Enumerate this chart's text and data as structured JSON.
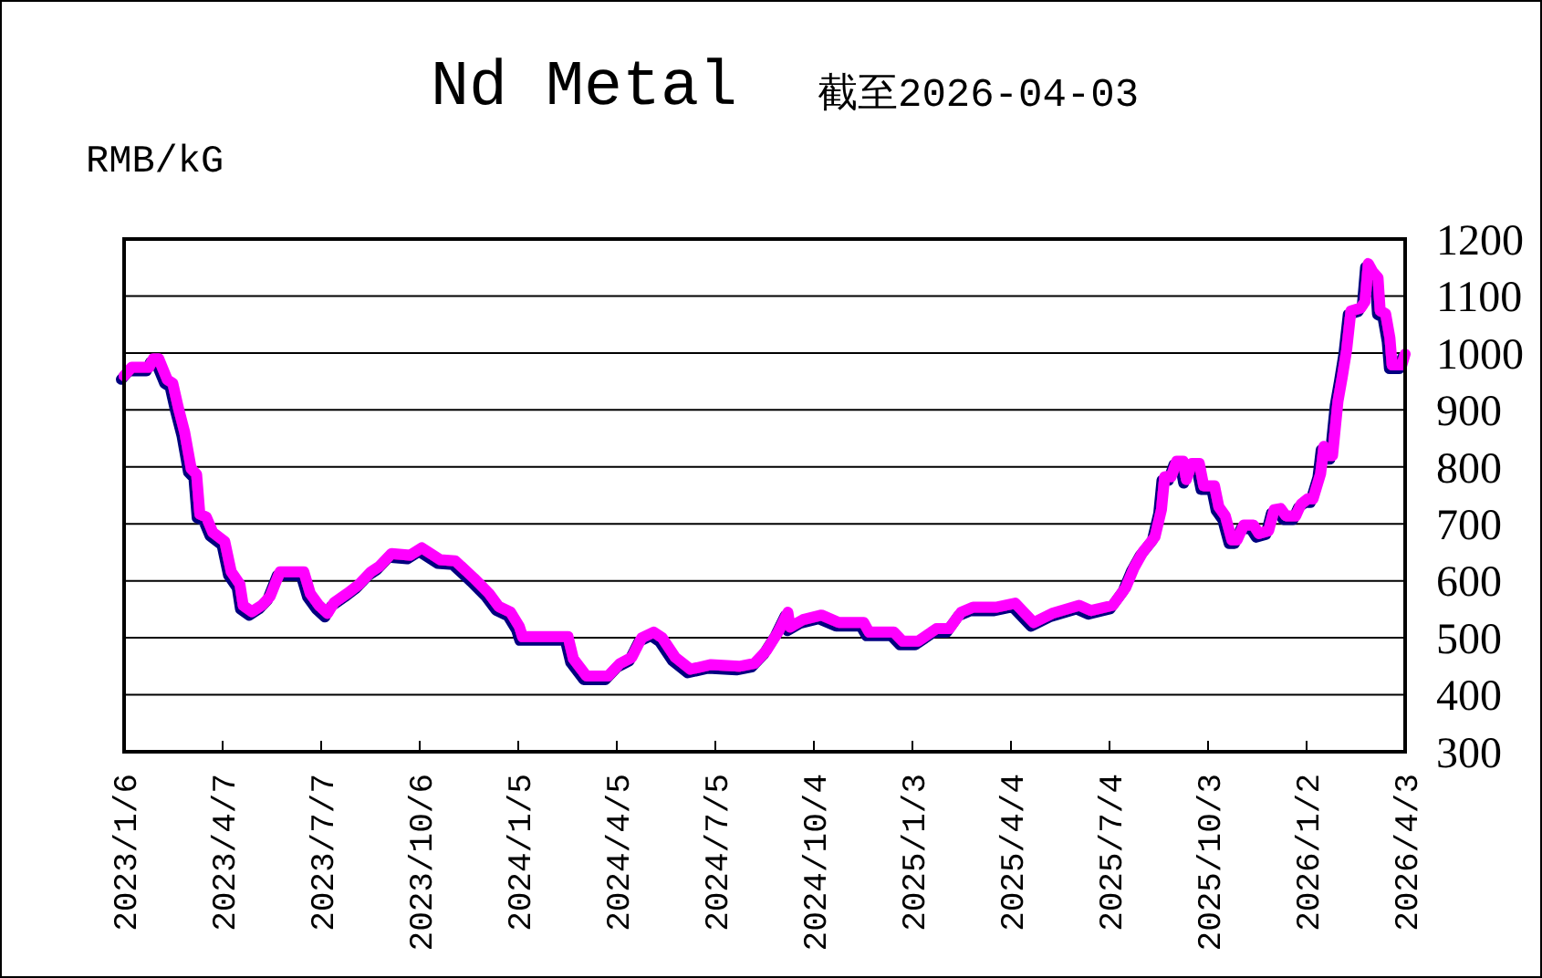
{
  "chart_data": {
    "type": "line",
    "title": "Nd Metal",
    "subtitle": "截至2026-04-03",
    "ylabel": "RMB/kG",
    "xlim": [
      "2023-01-06",
      "2026-04-03"
    ],
    "xticks": [
      {
        "value": "2023-01-06",
        "label": "2023/1/6"
      },
      {
        "value": "2023-04-07",
        "label": "2023/4/7"
      },
      {
        "value": "2023-07-07",
        "label": "2023/7/7"
      },
      {
        "value": "2023-10-06",
        "label": "2023/10/6"
      },
      {
        "value": "2024-01-05",
        "label": "2024/1/5"
      },
      {
        "value": "2024-04-05",
        "label": "2024/4/5"
      },
      {
        "value": "2024-07-05",
        "label": "2024/7/5"
      },
      {
        "value": "2024-10-04",
        "label": "2024/10/4"
      },
      {
        "value": "2025-01-03",
        "label": "2025/1/3"
      },
      {
        "value": "2025-04-04",
        "label": "2025/4/4"
      },
      {
        "value": "2025-07-04",
        "label": "2025/7/4"
      },
      {
        "value": "2025-10-03",
        "label": "2025/10/3"
      },
      {
        "value": "2026-01-02",
        "label": "2026/1/2"
      },
      {
        "value": "2026-04-03",
        "label": "2026/4/3"
      }
    ],
    "ylim": [
      300,
      1200
    ],
    "yticks": [
      300,
      400,
      500,
      600,
      700,
      800,
      900,
      1000,
      1100,
      1200
    ],
    "grid": "y",
    "series": [
      {
        "color": "#ff00ff",
        "x": [
          "2023-01-06",
          "2023-01-13",
          "2023-01-29",
          "2023-02-02",
          "2023-02-07",
          "2023-02-15",
          "2023-02-20",
          "2023-02-25",
          "2023-03-03",
          "2023-03-09",
          "2023-03-14",
          "2023-03-17",
          "2023-03-23",
          "2023-03-29",
          "2023-04-09",
          "2023-04-15",
          "2023-04-23",
          "2023-04-26",
          "2023-05-04",
          "2023-05-13",
          "2023-05-21",
          "2023-05-30",
          "2023-06-21",
          "2023-06-27",
          "2023-07-05",
          "2023-07-13",
          "2023-07-19",
          "2023-07-31",
          "2023-08-11",
          "2023-08-22",
          "2023-08-30",
          "2023-09-10",
          "2023-09-27",
          "2023-10-08",
          "2023-10-25",
          "2023-11-08",
          "2023-11-25",
          "2023-12-09",
          "2023-12-18",
          "2023-12-29",
          "2024-01-06",
          "2024-01-09",
          "2024-02-20",
          "2024-02-25",
          "2024-03-08",
          "2024-03-28",
          "2024-04-08",
          "2024-04-19",
          "2024-04-28",
          "2024-05-09",
          "2024-05-17",
          "2024-05-29",
          "2024-06-12",
          "2024-07-01",
          "2024-07-27",
          "2024-08-10",
          "2024-08-21",
          "2024-09-01",
          "2024-09-10",
          "2024-09-12",
          "2024-09-24",
          "2024-10-11",
          "2024-10-27",
          "2024-11-19",
          "2024-11-24",
          "2024-12-17",
          "2024-12-25",
          "2025-01-08",
          "2025-01-25",
          "2025-02-06",
          "2025-02-17",
          "2025-02-28",
          "2025-03-22",
          "2025-04-08",
          "2025-04-25",
          "2025-05-12",
          "2025-06-06",
          "2025-06-17",
          "2025-07-07",
          "2025-07-19",
          "2025-07-27",
          "2025-08-04",
          "2025-08-15",
          "2025-08-21",
          "2025-08-24",
          "2025-08-30",
          "2025-09-04",
          "2025-09-10",
          "2025-09-13",
          "2025-09-18",
          "2025-09-25",
          "2025-09-29",
          "2025-10-09",
          "2025-10-13",
          "2025-10-19",
          "2025-10-25",
          "2025-10-30",
          "2025-11-05",
          "2025-11-14",
          "2025-11-19",
          "2025-11-28",
          "2025-12-03",
          "2025-12-09",
          "2025-12-14",
          "2025-12-23",
          "2025-12-28",
          "2026-01-03",
          "2026-01-08",
          "2026-01-15",
          "2026-01-18",
          "2026-01-22",
          "2026-01-26",
          "2026-01-31",
          "2026-02-04",
          "2026-02-08",
          "2026-02-12",
          "2026-02-21",
          "2026-02-25",
          "2026-02-28",
          "2026-03-04",
          "2026-03-09",
          "2026-03-11",
          "2026-03-16",
          "2026-03-20",
          "2026-03-22",
          "2026-03-31",
          "2026-04-03"
        ],
        "values": [
          960,
          975,
          975,
          990,
          990,
          953,
          947,
          905,
          861,
          797,
          787,
          717,
          712,
          685,
          669,
          616,
          594,
          557,
          546,
          557,
          573,
          616,
          616,
          578,
          557,
          543,
          562,
          578,
          594,
          616,
          626,
          648,
          645,
          658,
          637,
          635,
          605,
          578,
          555,
          545,
          520,
          502,
          502,
          463,
          433,
          433,
          455,
          466,
          500,
          510,
          500,
          466,
          445,
          453,
          450,
          455,
          477,
          510,
          545,
          519,
          532,
          540,
          527,
          527,
          510,
          510,
          494,
          494,
          516,
          516,
          545,
          554,
          554,
          561,
          527,
          543,
          557,
          548,
          557,
          588,
          624,
          651,
          677,
          725,
          783,
          783,
          810,
          810,
          778,
          806,
          806,
          767,
          767,
          730,
          714,
          672,
          672,
          698,
          698,
          683,
          688,
          725,
          727,
          714,
          714,
          735,
          744,
          744,
          788,
          836,
          820,
          820,
          915,
          958,
          1005,
          1074,
          1079,
          1090,
          1157,
          1143,
          1132,
          1074,
          1069,
          1026,
          979,
          979,
          998
        ]
      }
    ]
  }
}
